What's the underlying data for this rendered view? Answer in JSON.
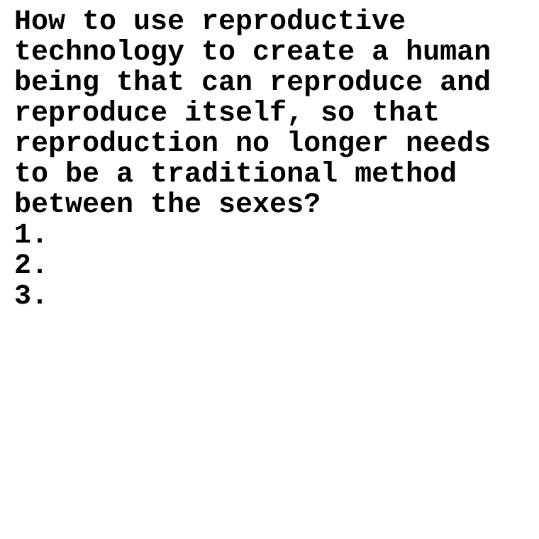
{
  "question": {
    "lines": [
      "How to use reproductive",
      "technology to create a human",
      "being that can reproduce and",
      "reproduce itself, so that",
      "reproduction no longer needs",
      "to be a traditional method",
      "between the sexes?"
    ]
  },
  "list": {
    "items": [
      "1.",
      "2.",
      "3."
    ]
  }
}
